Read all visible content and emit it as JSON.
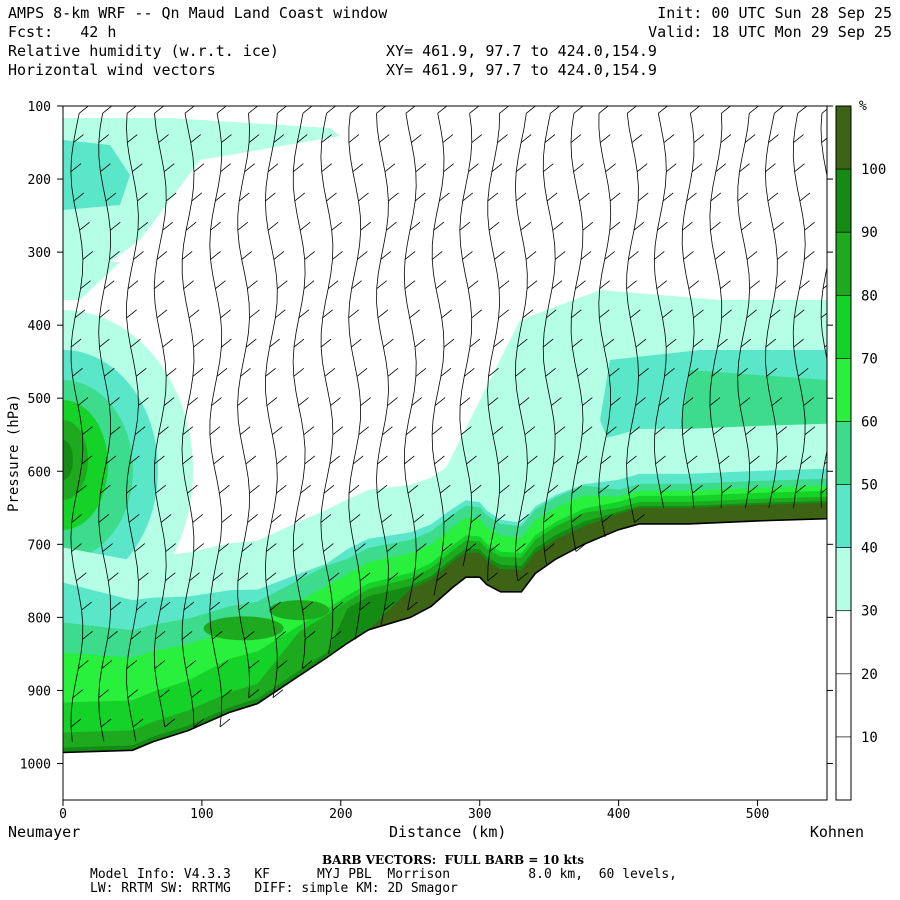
{
  "header": {
    "title": "AMPS 8-km WRF -- Qn Maud Land Coast window",
    "fcst": "Fcst:   42 h",
    "init": "Init: 00 UTC Sun 28 Sep 25",
    "valid": "Valid: 18 UTC Mon 29 Sep 25",
    "field1": "Relative humidity (w.r.t. ice)",
    "field2": "Horizontal wind vectors",
    "xy1": "XY= 461.9, 97.7 to 424.0,154.9",
    "xy2": "XY= 461.9, 97.7 to 424.0,154.9"
  },
  "footer": {
    "barb": "BARB VECTORS:  FULL BARB = 10 kts",
    "model1": "Model Info: V4.3.3   KF      MYJ PBL  Morrison          8.0 km,  60 levels,",
    "model2": "LW: RRTM SW: RRTMG   DIFF: simple KM: 2D Smagor"
  },
  "chart_data": {
    "type": "heatmap",
    "ylabel": "Pressure (hPa)",
    "xlabel": "Distance (km)",
    "x_left_label": "Neumayer",
    "x_right_label": "Kohnen",
    "xlim": [
      0,
      550
    ],
    "ylim": [
      1050,
      100
    ],
    "xticks": [
      0,
      100,
      200,
      300,
      400,
      500
    ],
    "yticks": [
      100,
      200,
      300,
      400,
      500,
      600,
      700,
      800,
      900,
      1000
    ],
    "colorbar": {
      "unit": "%",
      "levels": [
        10,
        20,
        30,
        40,
        50,
        60,
        70,
        80,
        90,
        100
      ],
      "colors": [
        "#ffffff",
        "#ffffff",
        "#ffffff",
        "#b4ffe6",
        "#5ae6c8",
        "#3cdc8c",
        "#28f03c",
        "#14d228",
        "#1eaa1e",
        "#148c14",
        "#3c6414"
      ]
    },
    "terrain_pressure": [
      {
        "x": 0,
        "p": 985
      },
      {
        "x": 50,
        "p": 982
      },
      {
        "x": 65,
        "p": 970
      },
      {
        "x": 90,
        "p": 955
      },
      {
        "x": 120,
        "p": 930
      },
      {
        "x": 140,
        "p": 918
      },
      {
        "x": 170,
        "p": 880
      },
      {
        "x": 190,
        "p": 855
      },
      {
        "x": 205,
        "p": 835
      },
      {
        "x": 220,
        "p": 817
      },
      {
        "x": 250,
        "p": 800
      },
      {
        "x": 265,
        "p": 785
      },
      {
        "x": 280,
        "p": 760
      },
      {
        "x": 290,
        "p": 745
      },
      {
        "x": 300,
        "p": 745
      },
      {
        "x": 305,
        "p": 755
      },
      {
        "x": 315,
        "p": 765
      },
      {
        "x": 330,
        "p": 765
      },
      {
        "x": 340,
        "p": 740
      },
      {
        "x": 355,
        "p": 720
      },
      {
        "x": 375,
        "p": 700
      },
      {
        "x": 400,
        "p": 680
      },
      {
        "x": 415,
        "p": 672
      },
      {
        "x": 450,
        "p": 672
      },
      {
        "x": 500,
        "p": 668
      },
      {
        "x": 550,
        "p": 665
      }
    ]
  }
}
